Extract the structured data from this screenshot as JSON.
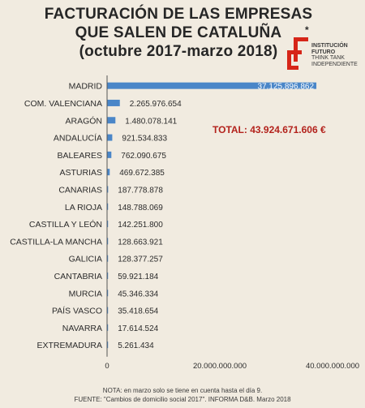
{
  "title_lines": [
    "FACTURACIÓN DE LAS EMPRESAS",
    "QUE SALEN DE CATALUÑA",
    "(octubre 2017-marzo 2018)"
  ],
  "asterisk": "*",
  "logo": {
    "line1": "INSTITUCIÓN",
    "line2": "FUTURO",
    "line3": "THINK TANK",
    "line4": "INDEPENDIENTE",
    "color": "#d62518"
  },
  "total_label": "TOTAL: 43.924.671.606 €",
  "note": "NOTA: en marzo solo se tiene en cuenta hasta el día 9.",
  "source": "FUENTE: \"Cambios de domicilio social 2017\". INFORMA D&B. Marzo 2018",
  "colors": {
    "bar": "#4a86c8",
    "axis": "#555555",
    "total": "#b3221c"
  },
  "chart_data": {
    "type": "bar",
    "orientation": "horizontal",
    "title": "FACTURACIÓN DE LAS EMPRESAS QUE SALEN DE CATALUÑA (octubre 2017-marzo 2018)",
    "categories": [
      "MADRID",
      "COM. VALENCIANA",
      "ARAGÓN",
      "ANDALUCÍA",
      "BALEARES",
      "ASTURIAS",
      "CANARIAS",
      "LA RIOJA",
      "CASTILLA Y LEÓN",
      "CASTILLA-LA MANCHA",
      "GALICIA",
      "CANTABRIA",
      "MURCIA",
      "PAÍS VASCO",
      "NAVARRA",
      "EXTREMADURA"
    ],
    "values": [
      37125896862,
      2265976654,
      1480078141,
      921534833,
      762090675,
      469672385,
      187778878,
      148788069,
      142251800,
      128663921,
      128377257,
      59921184,
      45346334,
      35418654,
      17614524,
      5261434
    ],
    "value_labels": [
      "37.125.896.862",
      "2.265.976.654",
      "1.480.078.141",
      "921.534.833",
      "762.090.675",
      "469.672.385",
      "187.778.878",
      "148.788.069",
      "142.251.800",
      "128.663.921",
      "128.377.257",
      "59.921.184",
      "45.346.334",
      "35.418.654",
      "17.614.524",
      "5.261.434"
    ],
    "x_ticks": [
      0,
      20000000000,
      40000000000
    ],
    "x_tick_labels": [
      "0",
      "20.000.000.000",
      "40.000.000.000"
    ],
    "xlim": [
      0,
      40000000000
    ],
    "grid": false,
    "legend": "none"
  }
}
